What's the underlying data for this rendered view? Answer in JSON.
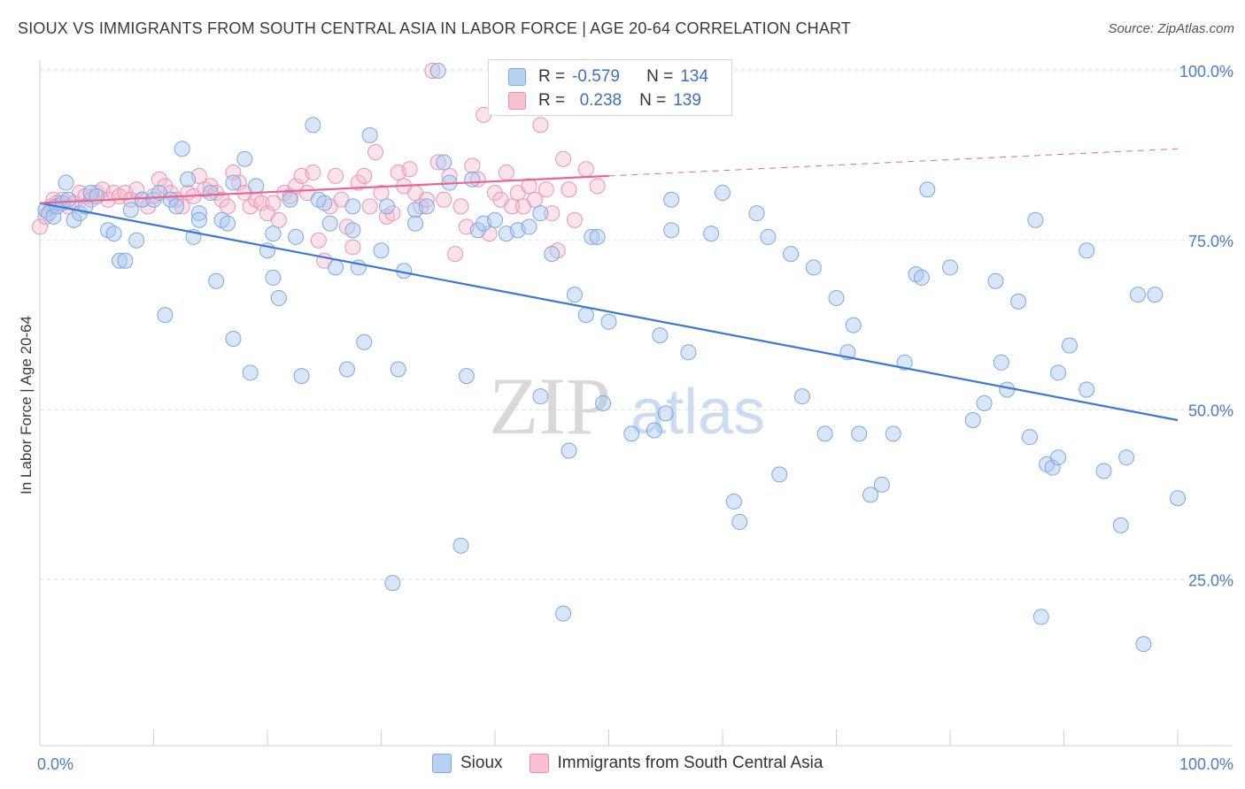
{
  "title": "SIOUX VS IMMIGRANTS FROM SOUTH CENTRAL ASIA IN LABOR FORCE | AGE 20-64 CORRELATION CHART",
  "source": "Source: ZipAtlas.com",
  "watermark": {
    "zip": "ZIP",
    "atlas": "atlas"
  },
  "legend": {
    "r_label": "R =",
    "n_label": "N =",
    "series": [
      {
        "name": "Sioux",
        "r": "-0.579",
        "n": "134",
        "color": "#7aaae8",
        "fill": "#b8d1f2"
      },
      {
        "name": "Immigrants from South Central Asia",
        "r": "0.238",
        "n": "139",
        "color": "#f08bab",
        "fill": "#f7c1d2"
      }
    ]
  },
  "chart_data": {
    "type": "scatter",
    "title": "SIOUX VS IMMIGRANTS FROM SOUTH CENTRAL ASIA IN LABOR FORCE | AGE 20-64 CORRELATION CHART",
    "xlabel": "",
    "ylabel": "In Labor Force | Age 20-64",
    "xlim": [
      0,
      100
    ],
    "ylim": [
      0,
      105
    ],
    "x_tick_labels": [
      "0.0%",
      "100.0%"
    ],
    "y_tick_labels": [
      "25.0%",
      "50.0%",
      "75.0%",
      "100.0%"
    ],
    "y_ticks": [
      25,
      50,
      75,
      100
    ],
    "grid": true,
    "series": [
      {
        "name": "Sioux",
        "color": "#6b9de0",
        "trend": {
          "x": [
            0,
            100
          ],
          "y": [
            80.5,
            48.5
          ],
          "style": "solid",
          "color": "#3b78d6"
        },
        "points": [
          [
            0.5,
            79.5
          ],
          [
            0.8,
            79
          ],
          [
            1.2,
            78.5
          ],
          [
            1.5,
            80
          ],
          [
            2,
            80.5
          ],
          [
            2.3,
            83.5
          ],
          [
            2.5,
            81
          ],
          [
            3,
            78
          ],
          [
            3.5,
            79
          ],
          [
            4,
            80
          ],
          [
            4.5,
            82
          ],
          [
            5,
            81.5
          ],
          [
            6,
            76.5
          ],
          [
            6.5,
            76
          ],
          [
            7,
            72
          ],
          [
            7.5,
            72
          ],
          [
            8,
            79.5
          ],
          [
            8.5,
            75
          ],
          [
            9,
            81
          ],
          [
            10,
            81
          ],
          [
            10.5,
            82
          ],
          [
            11,
            64
          ],
          [
            11.5,
            81
          ],
          [
            12,
            80
          ],
          [
            12.5,
            88.5
          ],
          [
            13,
            84
          ],
          [
            13.5,
            75.5
          ],
          [
            14,
            79
          ],
          [
            14,
            78
          ],
          [
            15,
            82
          ],
          [
            15.5,
            69
          ],
          [
            16,
            78
          ],
          [
            16.5,
            77.5
          ],
          [
            17,
            83.5
          ],
          [
            17,
            60.5
          ],
          [
            18,
            87
          ],
          [
            18.5,
            55.5
          ],
          [
            19,
            83
          ],
          [
            20,
            73.5
          ],
          [
            20.5,
            76
          ],
          [
            20.5,
            69.5
          ],
          [
            21,
            66.5
          ],
          [
            22,
            81
          ],
          [
            22.5,
            75.5
          ],
          [
            23,
            55
          ],
          [
            24,
            92
          ],
          [
            24.5,
            81
          ],
          [
            25,
            80.5
          ],
          [
            25.5,
            77.5
          ],
          [
            26,
            71
          ],
          [
            27,
            56
          ],
          [
            27.5,
            80
          ],
          [
            27.5,
            76.5
          ],
          [
            28,
            71
          ],
          [
            28.5,
            60
          ],
          [
            29,
            90.5
          ],
          [
            30,
            73.5
          ],
          [
            30.5,
            80
          ],
          [
            31,
            24.5
          ],
          [
            31.5,
            56
          ],
          [
            32,
            70.5
          ],
          [
            33,
            79.5
          ],
          [
            33,
            77.5
          ],
          [
            34,
            80
          ],
          [
            35,
            100
          ],
          [
            35.5,
            86.5
          ],
          [
            36,
            83.5
          ],
          [
            37,
            30
          ],
          [
            37.5,
            55
          ],
          [
            38,
            84
          ],
          [
            38.5,
            76.5
          ],
          [
            39,
            77.5
          ],
          [
            40,
            78
          ],
          [
            41,
            76
          ],
          [
            42,
            76.5
          ],
          [
            43,
            77
          ],
          [
            44,
            79
          ],
          [
            44,
            52
          ],
          [
            45,
            73
          ],
          [
            46,
            20
          ],
          [
            46.5,
            44
          ],
          [
            47,
            67
          ],
          [
            48,
            64
          ],
          [
            48.5,
            75.5
          ],
          [
            49,
            75.5
          ],
          [
            49.5,
            51
          ],
          [
            50,
            63
          ],
          [
            52,
            46.5
          ],
          [
            54,
            47
          ],
          [
            54.5,
            61
          ],
          [
            55,
            49.5
          ],
          [
            55.5,
            81
          ],
          [
            55.5,
            76.5
          ],
          [
            57,
            58.5
          ],
          [
            59,
            76
          ],
          [
            60,
            82
          ],
          [
            61,
            36.5
          ],
          [
            61.5,
            33.5
          ],
          [
            63,
            79
          ],
          [
            64,
            75.5
          ],
          [
            65,
            40.5
          ],
          [
            66,
            73
          ],
          [
            67,
            52
          ],
          [
            68,
            71
          ],
          [
            69,
            46.5
          ],
          [
            70,
            66.5
          ],
          [
            71,
            58.5
          ],
          [
            71.5,
            62.5
          ],
          [
            72,
            46.5
          ],
          [
            73,
            37.5
          ],
          [
            74,
            39
          ],
          [
            75,
            46.5
          ],
          [
            76,
            57
          ],
          [
            77,
            70
          ],
          [
            77.5,
            69.5
          ],
          [
            78,
            82.5
          ],
          [
            80,
            71
          ],
          [
            82,
            48.5
          ],
          [
            83,
            51
          ],
          [
            84,
            69
          ],
          [
            84.5,
            57
          ],
          [
            85,
            53
          ],
          [
            86,
            66
          ],
          [
            87,
            46
          ],
          [
            87.5,
            78
          ],
          [
            88,
            19.5
          ],
          [
            88.5,
            42
          ],
          [
            89,
            41.5
          ],
          [
            89.5,
            43
          ],
          [
            89.5,
            55.5
          ],
          [
            90.5,
            59.5
          ],
          [
            92,
            73.5
          ],
          [
            92,
            53
          ],
          [
            93.5,
            41
          ],
          [
            95,
            33
          ],
          [
            95.5,
            43
          ],
          [
            96.5,
            67
          ],
          [
            97,
            15.5
          ],
          [
            98,
            67
          ],
          [
            100,
            37
          ]
        ]
      },
      {
        "name": "Immigrants from South Central Asia",
        "color": "#f08bab",
        "trend": {
          "x": [
            0,
            50,
            100
          ],
          "y": [
            80.5,
            84.5,
            88.5
          ],
          "style": "solid-then-dashed",
          "solid_until": 50,
          "color": "#e8678f"
        },
        "points": [
          [
            0,
            77
          ],
          [
            0.5,
            78.5
          ],
          [
            1,
            80
          ],
          [
            1.2,
            81
          ],
          [
            1.5,
            80.5
          ],
          [
            2,
            81
          ],
          [
            2.5,
            80
          ],
          [
            3,
            80.5
          ],
          [
            3.5,
            82
          ],
          [
            4,
            81.5
          ],
          [
            4.5,
            81
          ],
          [
            5,
            82
          ],
          [
            5.5,
            82.5
          ],
          [
            6,
            81
          ],
          [
            6.5,
            82
          ],
          [
            7,
            81.5
          ],
          [
            7.5,
            82
          ],
          [
            8,
            81
          ],
          [
            8.5,
            82.5
          ],
          [
            9,
            81
          ],
          [
            9.5,
            80
          ],
          [
            10,
            81.5
          ],
          [
            10.5,
            84
          ],
          [
            11,
            83
          ],
          [
            11.5,
            82
          ],
          [
            12,
            81
          ],
          [
            12.5,
            80
          ],
          [
            13,
            82
          ],
          [
            13.5,
            81.5
          ],
          [
            14,
            84.5
          ],
          [
            14.5,
            82.5
          ],
          [
            15,
            83
          ],
          [
            15.5,
            82
          ],
          [
            16,
            81
          ],
          [
            16.5,
            80
          ],
          [
            17,
            85
          ],
          [
            17.5,
            83.5
          ],
          [
            18,
            82
          ],
          [
            18.5,
            80
          ],
          [
            19,
            81
          ],
          [
            19.5,
            80.5
          ],
          [
            20,
            79
          ],
          [
            20.5,
            80.5
          ],
          [
            21,
            78
          ],
          [
            21.5,
            82
          ],
          [
            22,
            81.5
          ],
          [
            22.5,
            83
          ],
          [
            23,
            84.5
          ],
          [
            23.5,
            82
          ],
          [
            24,
            85
          ],
          [
            24.5,
            75
          ],
          [
            25,
            72
          ],
          [
            25.5,
            80
          ],
          [
            26,
            84.5
          ],
          [
            26.5,
            81
          ],
          [
            27,
            77
          ],
          [
            27.5,
            74
          ],
          [
            28,
            83.5
          ],
          [
            28.5,
            84.5
          ],
          [
            29,
            80
          ],
          [
            29.5,
            88
          ],
          [
            30,
            82
          ],
          [
            30.5,
            78.5
          ],
          [
            31,
            79
          ],
          [
            31.5,
            85
          ],
          [
            32,
            83
          ],
          [
            32.5,
            85.5
          ],
          [
            33,
            82
          ],
          [
            33.5,
            80
          ],
          [
            34,
            81
          ],
          [
            34.5,
            100
          ],
          [
            35,
            86.5
          ],
          [
            35.5,
            81
          ],
          [
            36,
            84.5
          ],
          [
            36.5,
            73
          ],
          [
            37,
            80
          ],
          [
            37.5,
            77
          ],
          [
            38,
            86
          ],
          [
            38.5,
            84
          ],
          [
            39,
            93.5
          ],
          [
            39.5,
            76
          ],
          [
            40,
            82
          ],
          [
            40.5,
            81
          ],
          [
            41,
            85
          ],
          [
            41.5,
            80
          ],
          [
            42,
            82
          ],
          [
            42.5,
            80
          ],
          [
            43,
            83
          ],
          [
            43.5,
            81
          ],
          [
            44,
            92
          ],
          [
            44.5,
            82.5
          ],
          [
            45,
            79
          ],
          [
            45.5,
            73.5
          ],
          [
            46,
            87
          ],
          [
            46.5,
            82.5
          ],
          [
            47,
            78
          ],
          [
            48,
            85.5
          ],
          [
            49,
            83
          ]
        ]
      }
    ]
  }
}
